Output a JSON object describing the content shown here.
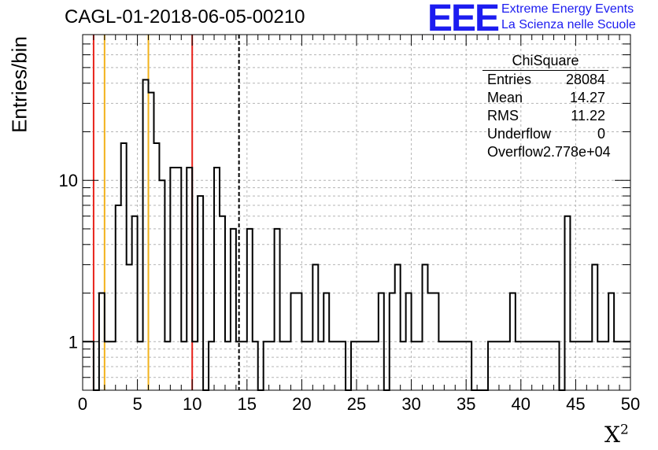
{
  "chart_data": {
    "type": "bar",
    "title": "CAGL-01-2018-06-05-00210",
    "xlabel": "X",
    "xlabel_sup": "2",
    "ylabel": "Entries/bin",
    "xlim": [
      0,
      50
    ],
    "ylim": [
      0.5,
      80
    ],
    "yscale": "log",
    "grid": true,
    "bin_width": 0.5,
    "x_ticks": [
      "0",
      "5",
      "10",
      "15",
      "20",
      "25",
      "30",
      "35",
      "40",
      "45",
      "50"
    ],
    "y_ticks": [
      "1",
      "10"
    ],
    "values": [
      1,
      1,
      0,
      2,
      1,
      1,
      7,
      17,
      3,
      6,
      1,
      42,
      35,
      17,
      10,
      1,
      12,
      12,
      1,
      12,
      1,
      8,
      0,
      1,
      12,
      6,
      1,
      5,
      1,
      1,
      5,
      1,
      0,
      1,
      1,
      5,
      1,
      1,
      2,
      2,
      1,
      1,
      3,
      1,
      2,
      1,
      1,
      1,
      0,
      1,
      1,
      1,
      1,
      1,
      2,
      0,
      2,
      3,
      1,
      2,
      1,
      1,
      3,
      2,
      2,
      1,
      1,
      1,
      1,
      1,
      1,
      0,
      0,
      0,
      1,
      1,
      1,
      1,
      2,
      1,
      1,
      1,
      1,
      1,
      1,
      1,
      1,
      0,
      6,
      1,
      1,
      1,
      1,
      3,
      1,
      1,
      2,
      1,
      1,
      1
    ],
    "vertical_lines": [
      {
        "x": 1,
        "color": "#e8221b",
        "style": "solid"
      },
      {
        "x": 2,
        "color": "#f2b21b",
        "style": "solid"
      },
      {
        "x": 6,
        "color": "#f2b21b",
        "style": "solid"
      },
      {
        "x": 10,
        "color": "#e8221b",
        "style": "solid"
      },
      {
        "x": 14.27,
        "color": "#000000",
        "style": "dashed"
      }
    ],
    "stats": {
      "title": "ChiSquare",
      "rows": [
        {
          "label": "Entries",
          "value": "28084"
        },
        {
          "label": "Mean",
          "value": "14.27"
        },
        {
          "label": "RMS",
          "value": "11.22"
        },
        {
          "label": "Underflow",
          "value": "0"
        },
        {
          "label": "Overflow",
          "value": "2.778e+04"
        }
      ]
    }
  },
  "logo": {
    "mark": "EEE",
    "line1": "Extreme Energy Events",
    "line2": "La Scienza nelle Scuole",
    "color": "#1c1cf0"
  }
}
